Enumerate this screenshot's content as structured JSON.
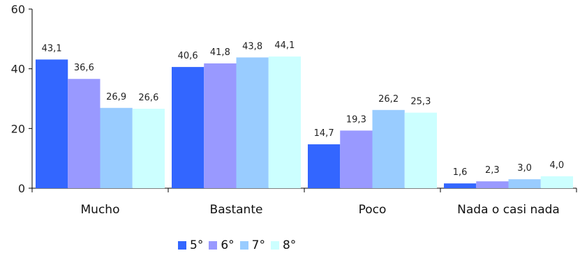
{
  "chart_data": {
    "type": "bar",
    "categories": [
      "Mucho",
      "Bastante",
      "Poco",
      "Nada o casi nada"
    ],
    "series": [
      {
        "name": "5°",
        "values": [
          43.1,
          40.6,
          14.7,
          1.6
        ],
        "labels": [
          "43,1",
          "40,6",
          "14,7",
          "1,6"
        ],
        "color": "#3366ff"
      },
      {
        "name": "6°",
        "values": [
          36.6,
          41.8,
          19.3,
          2.3
        ],
        "labels": [
          "36,6",
          "41,8",
          "19,3",
          "2,3"
        ],
        "color": "#9999ff"
      },
      {
        "name": "7°",
        "values": [
          26.9,
          43.8,
          26.2,
          3.0
        ],
        "labels": [
          "26,9",
          "43,8",
          "26,2",
          "3,0"
        ],
        "color": "#99ccff"
      },
      {
        "name": "8°",
        "values": [
          26.6,
          44.1,
          25.3,
          4.0
        ],
        "labels": [
          "26,6",
          "44,1",
          "25,3",
          "4,0"
        ],
        "color": "#ccffff"
      }
    ],
    "yticks": [
      "0",
      "20",
      "40",
      "60"
    ],
    "ylim": [
      0,
      60
    ],
    "grid": false,
    "legend_position": "bottom"
  }
}
